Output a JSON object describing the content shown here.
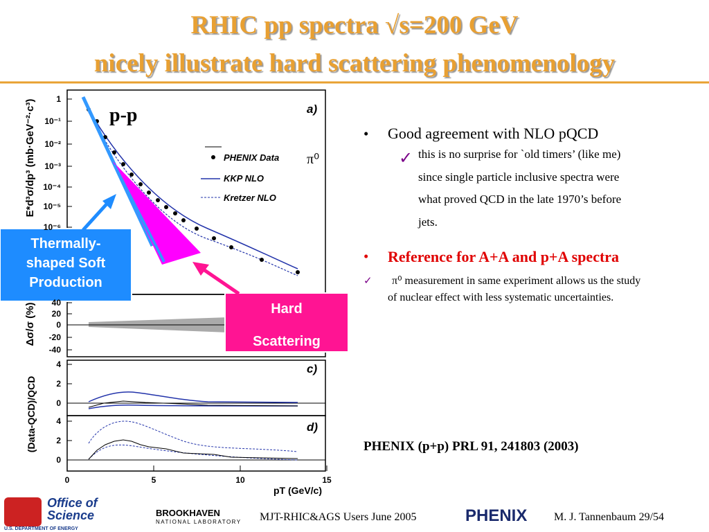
{
  "title": [
    "RHIC pp spectra √s=200 GeV",
    "nicely illustrate hard scattering phenomenology"
  ],
  "figure": {
    "system": "p-p",
    "panels": [
      "a)",
      "c)",
      "d)"
    ],
    "particle": "π⁰",
    "legend": [
      "PHENIX Data",
      "KKP NLO",
      "Kretzer NLO"
    ],
    "y_titles": [
      "E*d³σ/dp³ (mb·GeV⁻²·c³)",
      "Δσ/σ (%)",
      "(Data-QCD)/QCD"
    ],
    "yticks_a": [
      "1",
      "10⁻¹",
      "10⁻²",
      "10⁻³",
      "10⁻⁴",
      "10⁻⁵",
      "10⁻⁶"
    ],
    "yticks_b": [
      "40",
      "20",
      "0",
      "-20",
      "-40"
    ],
    "yticks_c": [
      "4",
      "2",
      "0"
    ],
    "yticks_d": [
      "4",
      "2",
      "0"
    ],
    "xticks": [
      "0",
      "5",
      "10",
      "15"
    ],
    "x_title": "pT (GeV/c)"
  },
  "callouts": {
    "soft": [
      "Thermally-",
      "shaped Soft",
      "Production"
    ],
    "hard": [
      "Hard",
      "Scattering"
    ]
  },
  "bullets": [
    {
      "text": "Good agreement with NLO pQCD",
      "sub": [
        "this is no surprise for `old timers’ (like me)",
        "since single particle inclusive spectra were",
        "what proved QCD in the late 1970’s before",
        "jets."
      ]
    },
    {
      "text": "Reference for A+A and p+A spectra",
      "sub": [
        "π⁰ measurement in same experiment allows us the study",
        "of nuclear effect with less systematic uncertainties."
      ]
    }
  ],
  "reference": "PHENIX (p+p) PRL 91, 241803 (2003)",
  "footer": {
    "doe": [
      "Office of",
      "Science",
      "U.S. DEPARTMENT OF ENERGY"
    ],
    "bnl": [
      "BROOKHAVEN",
      "NATIONAL LABORATORY"
    ],
    "event": "MJT-RHIC&AGS Users June 2005",
    "phenix": "PHENIX",
    "author": "M. J. Tannenbaum 29/54"
  }
}
